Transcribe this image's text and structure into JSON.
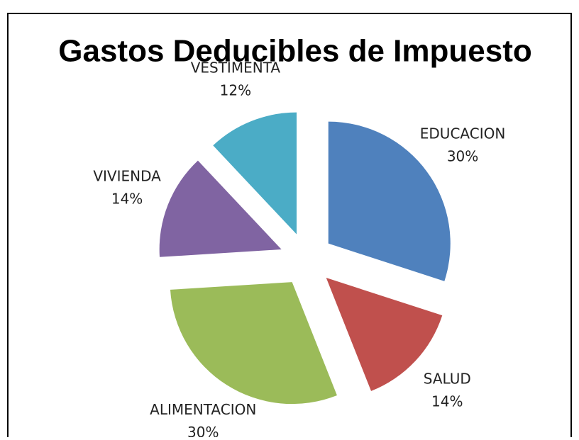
{
  "chart_data": {
    "type": "pie",
    "title": "Gastos Deducibles de Impuesto",
    "categories": [
      "EDUCACION",
      "SALUD",
      "ALIMENTACION",
      "VIVIENDA",
      "VESTIMENTA"
    ],
    "values": [
      30,
      14,
      30,
      14,
      12
    ],
    "value_labels": [
      "30%",
      "14%",
      "30%",
      "14%",
      "12%"
    ],
    "colors": [
      "#4f81bd",
      "#c0504d",
      "#9bbb59",
      "#8064a2",
      "#4bacc6"
    ],
    "exploded": true
  }
}
